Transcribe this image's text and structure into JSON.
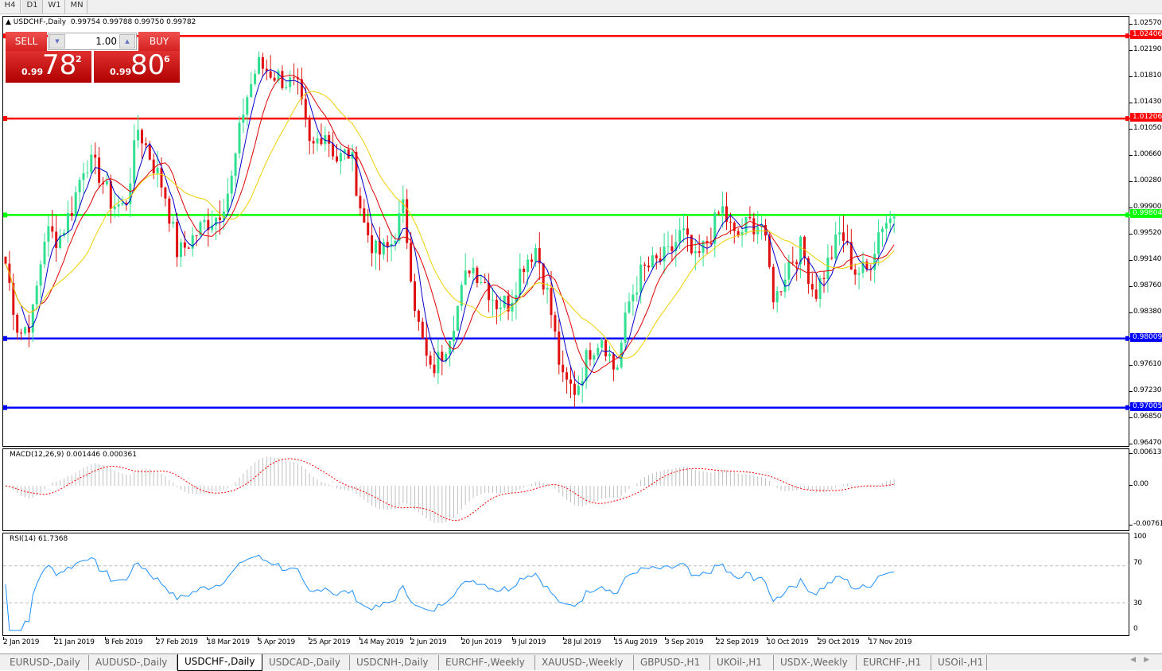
{
  "timeframes": [
    {
      "label": "H4",
      "active": false
    },
    {
      "label": "D1",
      "active": true
    },
    {
      "label": "W1",
      "active": false
    },
    {
      "label": "MN",
      "active": false
    }
  ],
  "header": {
    "symbol": "USDCHF-,Daily",
    "ohlc": "0.99754 0.99788 0.99750 0.99782"
  },
  "trade": {
    "sell_label": "SELL",
    "buy_label": "BUY",
    "lot": "1.00",
    "sell": {
      "prefix": "0.99",
      "big": "78",
      "sup": "2"
    },
    "buy": {
      "prefix": "0.99",
      "big": "80",
      "sup": "6"
    }
  },
  "price_axis": [
    "1.02570",
    "1.02190",
    "1.01810",
    "1.01430",
    "1.01050",
    "1.00660",
    "1.00280",
    "0.99900",
    "0.99520",
    "0.99140",
    "0.98760",
    "0.98380",
    "0.97610",
    "0.97230",
    "0.96850",
    "0.96470"
  ],
  "levels": [
    {
      "value": "1.02406",
      "color": "#ff0000"
    },
    {
      "value": "1.01206",
      "color": "#ff0000"
    },
    {
      "value": "0.99804",
      "color": "#00ff00"
    },
    {
      "value": "0.98009",
      "color": "#0000ff"
    },
    {
      "value": "0.97005",
      "color": "#0000ff"
    }
  ],
  "price_close_samples": [
    0.991,
    0.9806,
    0.983,
    0.9957,
    0.9945,
    0.9991,
    1.0061,
    1.0043,
    0.9997,
    0.9991,
    1.0107,
    1.0061,
    1.0014,
    0.9922,
    0.9945,
    0.9968,
    0.998,
    1.0026,
    1.0141,
    1.0199,
    1.0188,
    1.0176,
    1.0165,
    1.0072,
    1.0107,
    1.0061,
    1.0072,
    0.9968,
    0.9922,
    0.9934,
    0.9991,
    0.983,
    0.9749,
    0.9783,
    0.9841,
    0.991,
    0.9887,
    0.9853,
    0.9853,
    0.991,
    0.9934,
    0.9853,
    0.9737,
    0.9726,
    0.9783,
    0.9806,
    0.9749,
    0.9853,
    0.9899,
    0.991,
    0.9922,
    0.9957,
    0.991,
    0.9945,
    0.9991,
    0.9945,
    0.9968,
    0.9968,
    0.9853,
    0.991,
    0.9934,
    0.9864,
    0.991,
    0.9957,
    0.9899,
    0.9899,
    0.9968,
    0.9978
  ],
  "colors": {
    "bull": "#30e090",
    "bear": "#e01010",
    "ma_fast": "#0000cc",
    "ma_mid": "#e00000",
    "ma_slow": "#f0d000",
    "macd_hist": "#c0c0c0",
    "macd_signal": "#ff0000",
    "rsi": "#1e90ff"
  },
  "macd": {
    "label": "MACD(12,26,9) 0.001446 0.000361",
    "axis": [
      "0.00613",
      "0.00",
      "-0.007612"
    ]
  },
  "rsi": {
    "label": "RSI(14) 61.7368",
    "axis": [
      "100",
      "70",
      "30",
      "0"
    ]
  },
  "dates": [
    "2 Jan 2019",
    "21 Jan 2019",
    "8 Feb 2019",
    "27 Feb 2019",
    "18 Mar 2019",
    "5 Apr 2019",
    "25 Apr 2019",
    "14 May 2019",
    "2 Jun 2019",
    "20 Jun 2019",
    "9 Jul 2019",
    "28 Jul 2019",
    "15 Aug 2019",
    "3 Sep 2019",
    "22 Sep 2019",
    "10 Oct 2019",
    "29 Oct 2019",
    "17 Nov 2019"
  ],
  "tabs": [
    {
      "label": "EURUSD-,Daily"
    },
    {
      "label": "AUDUSD-,Daily"
    },
    {
      "label": "USDCHF-,Daily",
      "active": true
    },
    {
      "label": "USDCAD-,Daily"
    },
    {
      "label": "USDCNH-,Daily"
    },
    {
      "label": "EURCHF-,Weekly"
    },
    {
      "label": "XAUUSD-,Weekly"
    },
    {
      "label": "GBPUSD-,H1"
    },
    {
      "label": "UKOil-,H1"
    },
    {
      "label": "USDX-,Weekly"
    },
    {
      "label": "EURCHF-,H1"
    },
    {
      "label": "USOil-,H1"
    }
  ]
}
